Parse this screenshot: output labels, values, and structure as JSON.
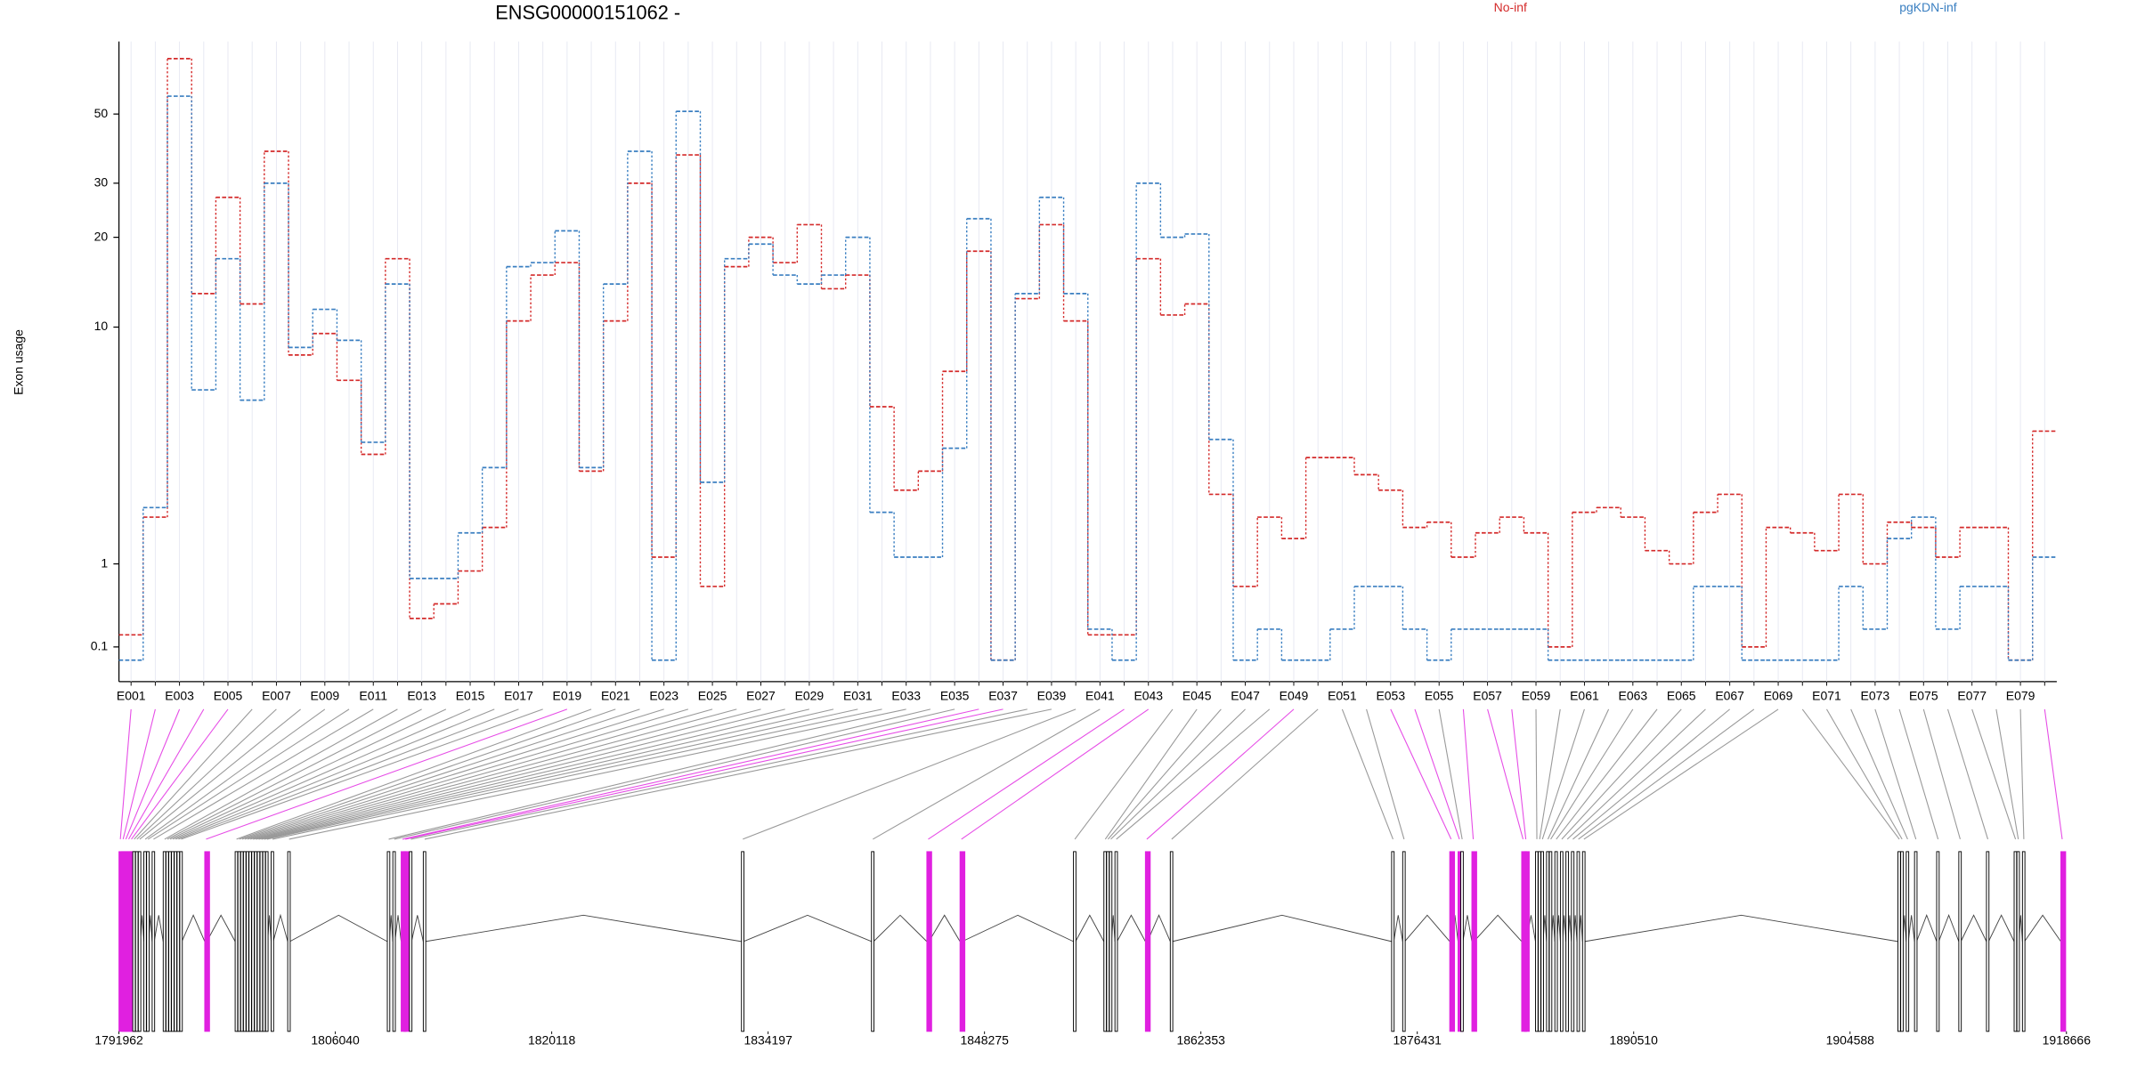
{
  "chart_data": {
    "type": "line",
    "title": "ENSG00000151062 -",
    "y_label": "Exon usage",
    "yscale": "log1p",
    "ylim": [
      0,
      85
    ],
    "yticks": [
      0.1,
      1,
      10,
      20,
      30,
      50
    ],
    "categories": [
      "E001",
      null,
      "E003",
      null,
      "E005",
      null,
      "E007",
      null,
      "E009",
      null,
      "E011",
      null,
      "E013",
      null,
      "E015",
      null,
      "E017",
      null,
      "E019",
      null,
      "E021",
      null,
      "E023",
      null,
      "E025",
      null,
      "E027",
      null,
      "E029",
      null,
      "E031",
      null,
      "E033",
      null,
      "E035",
      null,
      "E037",
      null,
      "E039",
      null,
      "E041",
      null,
      "E043",
      null,
      "E045",
      null,
      "E047",
      null,
      "E049",
      null,
      "E051",
      null,
      "E053",
      null,
      "E055",
      null,
      "E057",
      null,
      "E059",
      null,
      "E061",
      null,
      "E063",
      null,
      "E065",
      null,
      "E067",
      null,
      "E069",
      null,
      "E071",
      null,
      "E073",
      null,
      "E075",
      null,
      "E077",
      null,
      "E079",
      null
    ],
    "series": [
      {
        "name": "No-inf",
        "color": "#d42a2a",
        "values": [
          0.2,
          1.8,
          75,
          13,
          27,
          12,
          38,
          8,
          9.5,
          6.5,
          3.4,
          17,
          0.35,
          0.5,
          0.9,
          1.6,
          10.5,
          15,
          16.5,
          2.9,
          10.5,
          30,
          1.1,
          37,
          0.7,
          16,
          20,
          16.5,
          22,
          13.5,
          15,
          5.2,
          2.4,
          2.9,
          7,
          18,
          0,
          12.5,
          22,
          10.5,
          0.2,
          0.2,
          17,
          11,
          12,
          2.3,
          0.7,
          1.8,
          1.4,
          3.3,
          3.3,
          2.8,
          2.4,
          1.6,
          1.7,
          1.1,
          1.5,
          1.8,
          1.5,
          0.1,
          1.9,
          2.0,
          1.8,
          1.2,
          1.0,
          1.9,
          2.3,
          0.1,
          1.6,
          1.5,
          1.2,
          2.3,
          1.0,
          1.7,
          1.6,
          1.1,
          1.6,
          1.6,
          0,
          4.2
        ]
      },
      {
        "name": "pgKDN-inf",
        "color": "#3a7fc1",
        "values": [
          0,
          2.0,
          57,
          6,
          17,
          5.5,
          30,
          8.5,
          11.5,
          9,
          3.8,
          14,
          0.8,
          0.8,
          1.5,
          3,
          16,
          16.5,
          21,
          3,
          14,
          38,
          0,
          51,
          2.6,
          17,
          19,
          15,
          14,
          15,
          20,
          1.9,
          1.1,
          1.1,
          3.6,
          23,
          0,
          13,
          27,
          13,
          0.25,
          0,
          30,
          20,
          20.5,
          3.9,
          0,
          0.25,
          0,
          0,
          0.25,
          0.7,
          0.7,
          0.25,
          0,
          0.25,
          0.25,
          0.25,
          0.25,
          0,
          0,
          0,
          0,
          0,
          0,
          0.7,
          0.7,
          0,
          0,
          0,
          0,
          0.7,
          0.25,
          1.4,
          1.8,
          0.25,
          0.7,
          0.7,
          0,
          1.1
        ]
      }
    ],
    "gene_model": {
      "xlim": [
        1791962,
        1918666
      ],
      "xticks": [
        1791962,
        1806040,
        1820118,
        1834197,
        1848275,
        1862353,
        1876431,
        1890510,
        1904588,
        1918666
      ],
      "highlight_color": "#e020e0",
      "significant": [
        0,
        1,
        2,
        3,
        4,
        18,
        35,
        36,
        41,
        42,
        48,
        52,
        53,
        55,
        56,
        57,
        79
      ],
      "exon_starts": [
        1791962,
        1792142,
        1792322,
        1792502,
        1792682,
        1792862,
        1793042,
        1793222,
        1793582,
        1793762,
        1794122,
        1794842,
        1795022,
        1795202,
        1795382,
        1795562,
        1795742,
        1795922,
        1797542,
        1799522,
        1799702,
        1799882,
        1800062,
        1800242,
        1800422,
        1800602,
        1800782,
        1800962,
        1801142,
        1801322,
        1801502,
        1801862,
        1802942,
        1809422,
        1809782,
        1810322,
        1810502,
        1810862,
        1811762,
        1832462,
        1840922,
        1844522,
        1846682,
        1854062,
        1856042,
        1856222,
        1856402,
        1856762,
        1858742,
        1860362,
        1874762,
        1875482,
        1878542,
        1879082,
        1879262,
        1879982,
        1883222,
        1883402,
        1884122,
        1884302,
        1884482,
        1884842,
        1885022,
        1885382,
        1885742,
        1886102,
        1886462,
        1886822,
        1887182,
        1907702,
        1907882,
        1908242,
        1908782,
        1910222,
        1911662,
        1913462,
        1915262,
        1915442,
        1915802,
        1918300
      ]
    }
  }
}
